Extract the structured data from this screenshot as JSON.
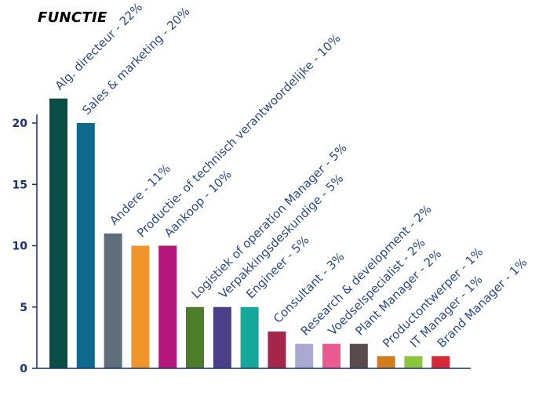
{
  "chart_data": {
    "type": "bar",
    "title": "FUNCTIE",
    "xlabel": "",
    "ylabel": "",
    "ylim": [
      0,
      22
    ],
    "yticks": [
      0,
      5,
      10,
      15,
      20
    ],
    "grid": false,
    "categories": [
      "Alg. directeur - 22%",
      "Sales & marketing - 20%",
      "Andere - 11%",
      "Productie- of technisch verantwoordelijke - 10%",
      "Aankoop - 10%",
      "Logistiek of operation Manager - 5%",
      "Verpakkingsdeskundige - 5%",
      "Engineer - 5%",
      "Consultant - 3%",
      "Research & development - 2%",
      "Voedselspecialist - 2%",
      "Plant Manager - 2%",
      "Productontwerper - 1%",
      "IT Manager - 1%",
      "Brand Manager - 1%"
    ],
    "values": [
      22,
      20,
      11,
      10,
      10,
      5,
      5,
      5,
      3,
      2,
      2,
      2,
      1,
      1,
      1
    ],
    "colors": [
      "#0a4d44",
      "#0e6a8c",
      "#5f6f7a",
      "#f0952a",
      "#b5177a",
      "#4d7d2a",
      "#4b3f8a",
      "#14a79a",
      "#a4264a",
      "#a9a9d2",
      "#ec5a92",
      "#5a4c4e",
      "#cf7d1d",
      "#8cc63e",
      "#d42a36"
    ],
    "text_color": "#2a4a8a",
    "axis_color": "#1a2f6e"
  }
}
